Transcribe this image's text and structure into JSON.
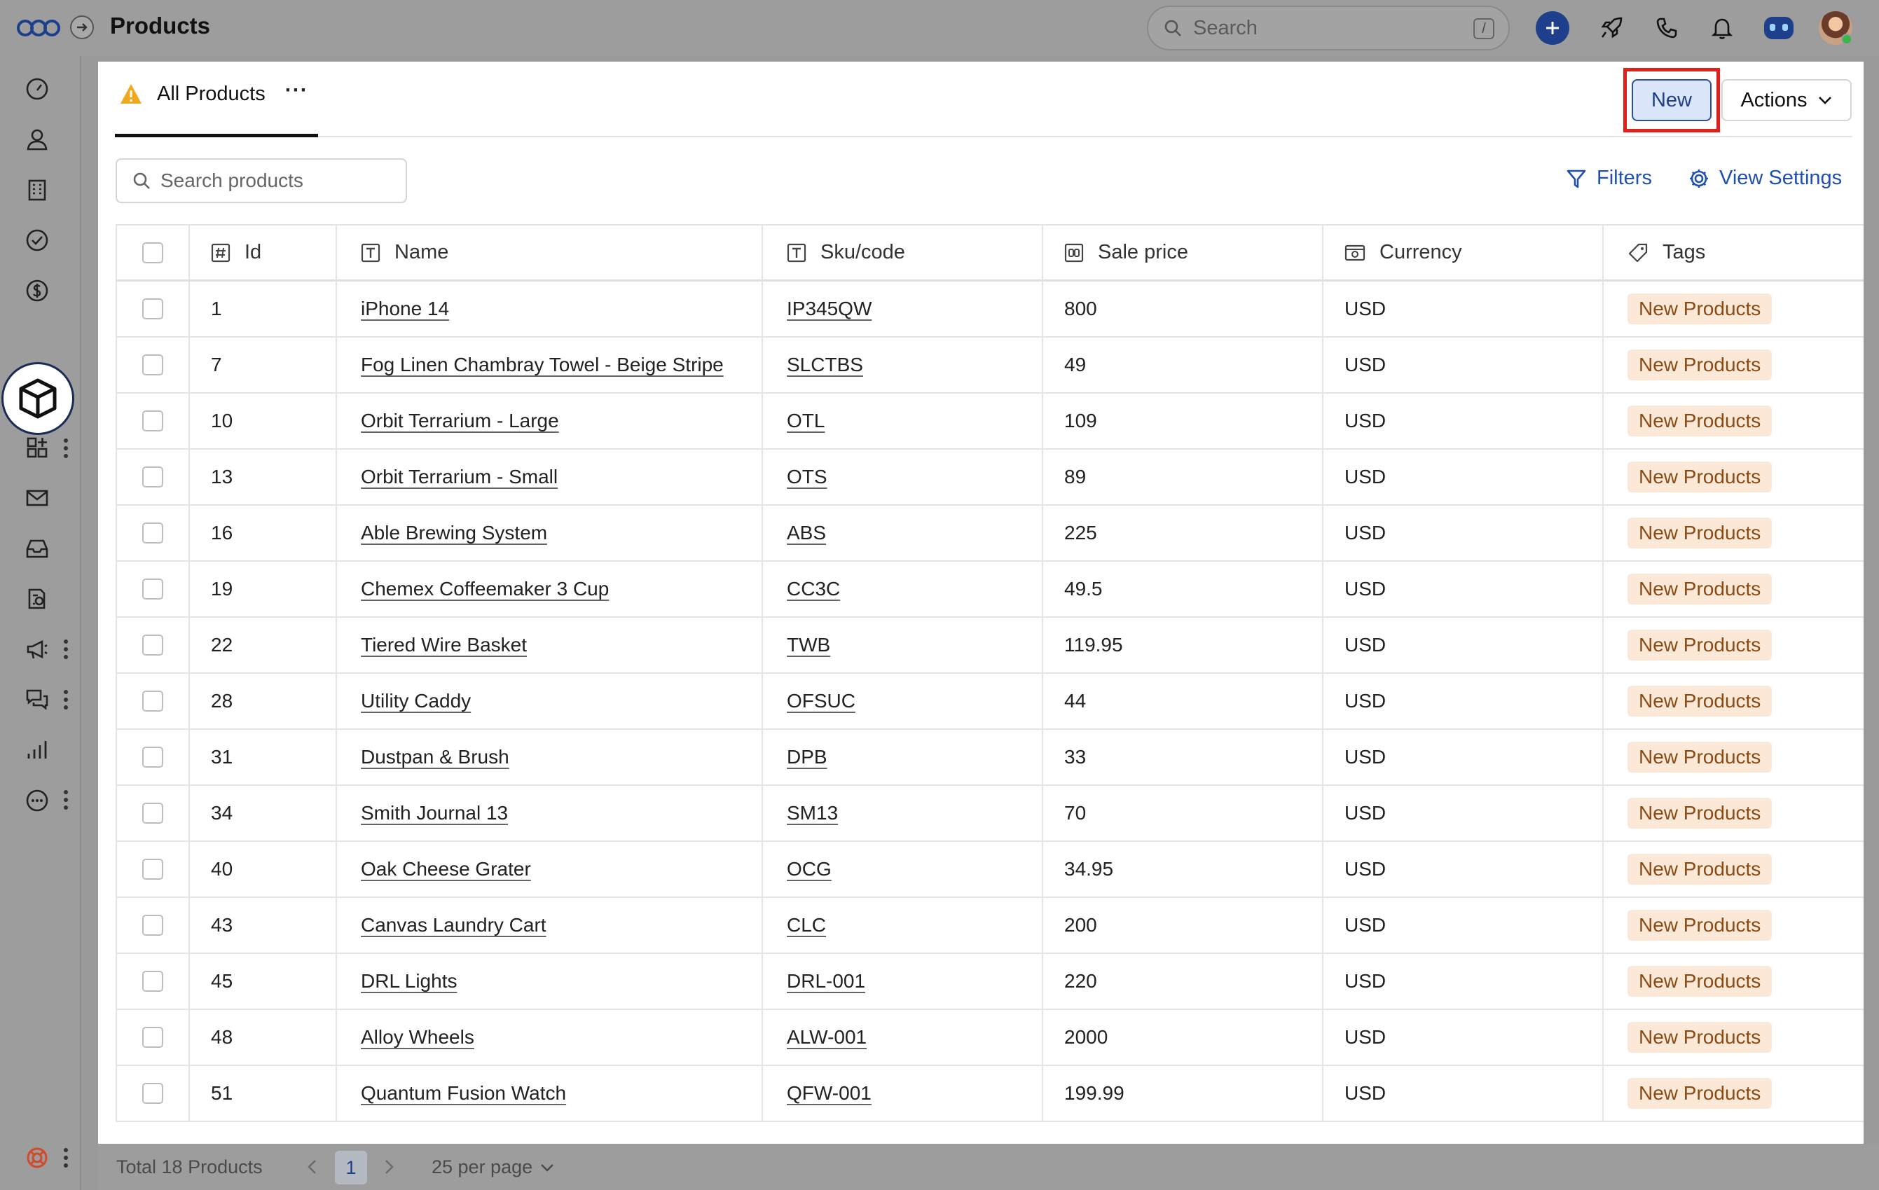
{
  "header": {
    "title": "Products",
    "search_placeholder": "Search",
    "search_shortcut": "/"
  },
  "icons": {
    "logo": "logo-icon",
    "expand": "arrow-right-icon",
    "top": [
      "plus-icon",
      "rocket-icon",
      "phone-icon",
      "bell-icon",
      "assistant-icon"
    ],
    "sidebar": [
      "dashboard-icon",
      "contacts-icon",
      "companies-icon",
      "tasks-icon",
      "deals-icon",
      "products-icon",
      "apps-icon",
      "mail-icon",
      "inbox-icon",
      "documents-icon",
      "campaigns-icon",
      "chat-icon",
      "reports-icon",
      "more-icon",
      "help-icon"
    ]
  },
  "colors": {
    "accent": "#1d3f8c",
    "link": "#1f4fb0",
    "highlight": "#e0201b",
    "tag_bg": "#fbe8d7",
    "tag_text": "#8a4a14",
    "warning": "#f0a81c"
  },
  "view": {
    "tab_label": "All Products",
    "tab_more": "···",
    "new_label": "New",
    "actions_label": "Actions",
    "search_placeholder": "Search products",
    "filters_label": "Filters",
    "view_settings_label": "View Settings"
  },
  "table": {
    "columns": [
      "Id",
      "Name",
      "Sku/code",
      "Sale price",
      "Currency",
      "Tags"
    ],
    "rows": [
      {
        "id": "1",
        "name": "iPhone 14",
        "sku": "IP345QW",
        "price": "800",
        "currency": "USD",
        "tag": "New Products"
      },
      {
        "id": "7",
        "name": "Fog Linen Chambray Towel - Beige Stripe",
        "sku": "SLCTBS",
        "price": "49",
        "currency": "USD",
        "tag": "New Products"
      },
      {
        "id": "10",
        "name": "Orbit Terrarium - Large",
        "sku": "OTL",
        "price": "109",
        "currency": "USD",
        "tag": "New Products"
      },
      {
        "id": "13",
        "name": "Orbit Terrarium - Small",
        "sku": "OTS",
        "price": "89",
        "currency": "USD",
        "tag": "New Products"
      },
      {
        "id": "16",
        "name": "Able Brewing System",
        "sku": "ABS",
        "price": "225",
        "currency": "USD",
        "tag": "New Products"
      },
      {
        "id": "19",
        "name": "Chemex Coffeemaker 3 Cup",
        "sku": "CC3C",
        "price": "49.5",
        "currency": "USD",
        "tag": "New Products"
      },
      {
        "id": "22",
        "name": "Tiered Wire Basket",
        "sku": "TWB",
        "price": "119.95",
        "currency": "USD",
        "tag": "New Products"
      },
      {
        "id": "28",
        "name": "Utility Caddy",
        "sku": "OFSUC",
        "price": "44",
        "currency": "USD",
        "tag": "New Products"
      },
      {
        "id": "31",
        "name": "Dustpan & Brush",
        "sku": "DPB",
        "price": "33",
        "currency": "USD",
        "tag": "New Products"
      },
      {
        "id": "34",
        "name": "Smith Journal 13",
        "sku": "SM13",
        "price": "70",
        "currency": "USD",
        "tag": "New Products"
      },
      {
        "id": "40",
        "name": "Oak Cheese Grater",
        "sku": "OCG",
        "price": "34.95",
        "currency": "USD",
        "tag": "New Products"
      },
      {
        "id": "43",
        "name": "Canvas Laundry Cart",
        "sku": "CLC",
        "price": "200",
        "currency": "USD",
        "tag": "New Products"
      },
      {
        "id": "45",
        "name": "DRL Lights",
        "sku": "DRL-001",
        "price": "220",
        "currency": "USD",
        "tag": "New Products"
      },
      {
        "id": "48",
        "name": "Alloy Wheels",
        "sku": "ALW-001",
        "price": "2000",
        "currency": "USD",
        "tag": "New Products"
      },
      {
        "id": "51",
        "name": "Quantum Fusion Watch",
        "sku": "QFW-001",
        "price": "199.99",
        "currency": "USD",
        "tag": "New Products"
      }
    ]
  },
  "footer": {
    "total": "Total 18 Products",
    "page": "1",
    "per_page": "25 per page"
  }
}
